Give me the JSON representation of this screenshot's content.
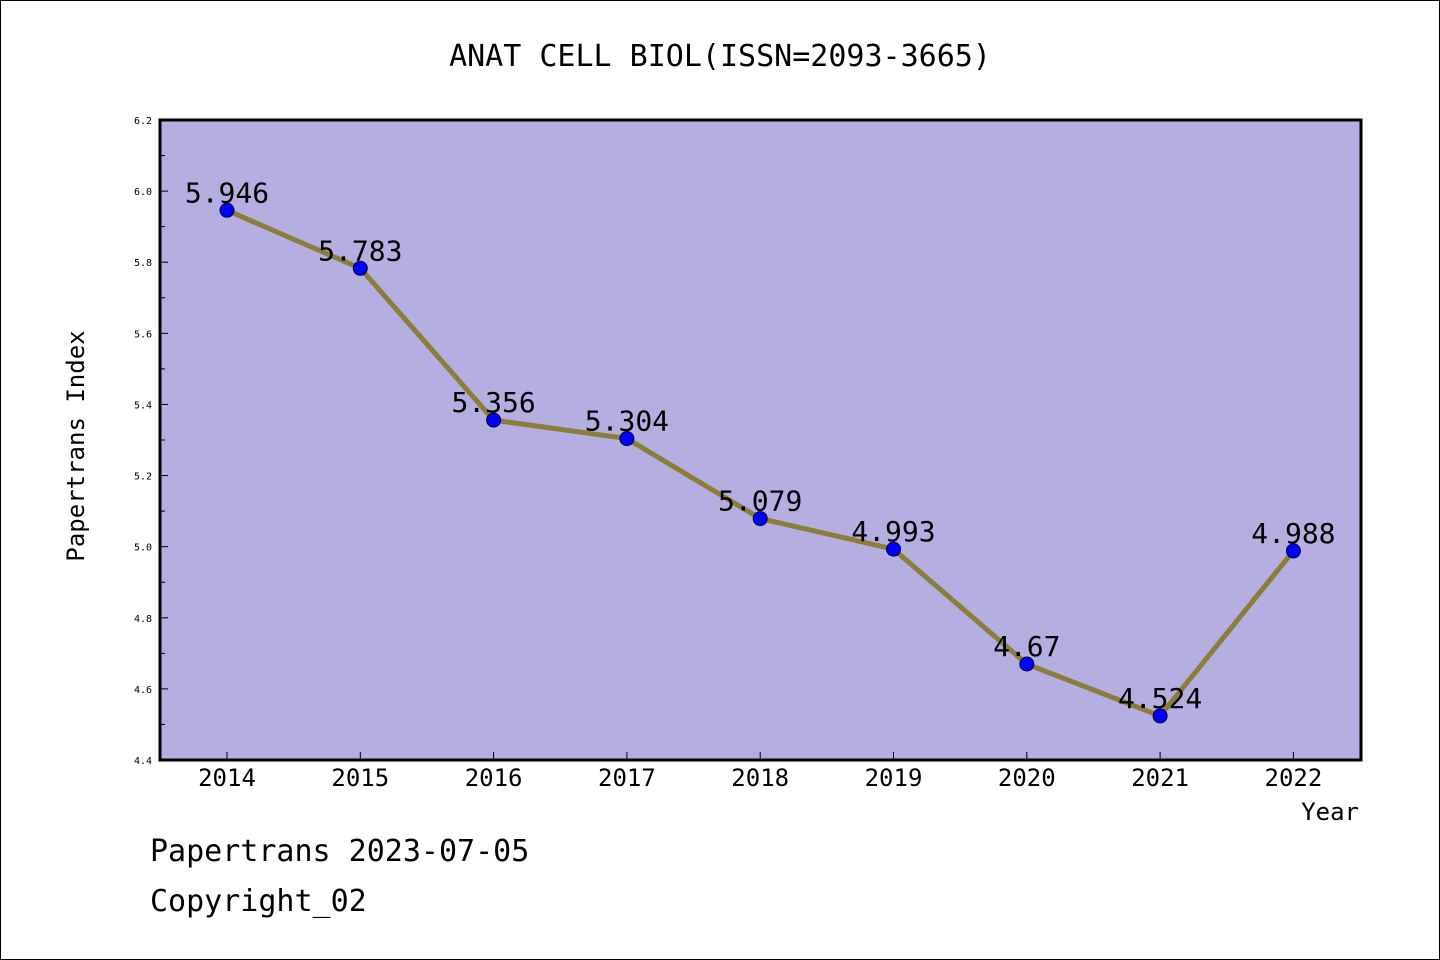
{
  "chart_data": {
    "type": "line",
    "title": "ANAT CELL BIOL(ISSN=2093-3665)",
    "xlabel": "Year",
    "ylabel": "Papertrans Index",
    "categories": [
      "2014",
      "2015",
      "2016",
      "2017",
      "2018",
      "2019",
      "2020",
      "2021",
      "2022"
    ],
    "series": [
      {
        "values": [
          5.946,
          5.783,
          5.356,
          5.304,
          5.079,
          4.993,
          4.67,
          4.524,
          4.988
        ],
        "data_labels": [
          "5.946",
          "5.783",
          "5.356",
          "5.304",
          "5.079",
          "4.993",
          "4.67",
          "4.524",
          "4.988"
        ]
      }
    ],
    "ylim": [
      4.4,
      6.2
    ],
    "yticks": [
      "4.4",
      "4.6",
      "4.8",
      "5.0",
      "5.2",
      "5.4",
      "5.6",
      "5.8",
      "6.0",
      "6.2"
    ],
    "grid": false,
    "legend": "none",
    "colors": {
      "plot_background": "#b4aee1",
      "line": "#8b7d3a",
      "marker": "#0000ff",
      "axis": "#000000"
    }
  },
  "footer": {
    "line1": "Papertrans 2023-07-05",
    "line2": "Copyright_02"
  }
}
